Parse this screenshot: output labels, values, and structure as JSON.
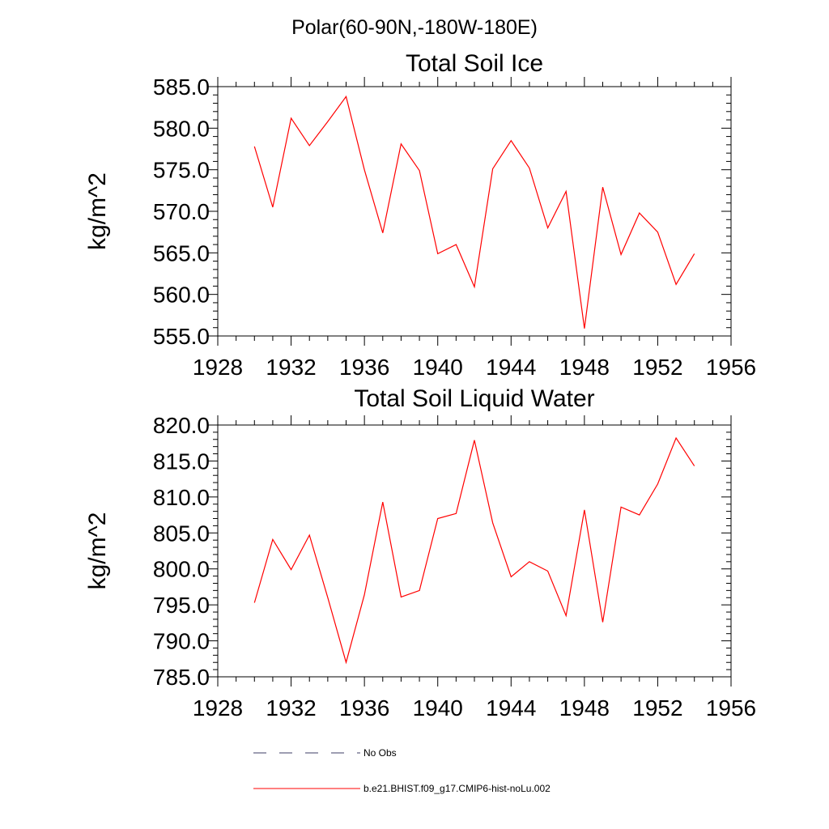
{
  "figure_title": "Polar(60-90N,-180W-180E)",
  "chart_data": [
    {
      "type": "line",
      "title": "Total Soil Ice",
      "xlabel": "",
      "ylabel": "kg/m^2",
      "xlim": [
        1928,
        1956
      ],
      "ylim": [
        555.0,
        585.0
      ],
      "xticks": [
        "1928",
        "1932",
        "1936",
        "1940",
        "1944",
        "1948",
        "1952",
        "1956"
      ],
      "yticks": [
        "555.0",
        "560.0",
        "565.0",
        "570.0",
        "575.0",
        "580.0",
        "585.0"
      ],
      "series": [
        {
          "color": "#ff0000",
          "x": [
            1930,
            1931,
            1932,
            1933,
            1934,
            1935,
            1936,
            1937,
            1938,
            1939,
            1940,
            1941,
            1942,
            1943,
            1944,
            1945,
            1946,
            1947,
            1948,
            1949,
            1950,
            1951,
            1952,
            1953,
            1954
          ],
          "values": [
            577.8,
            570.5,
            581.2,
            577.9,
            580.8,
            583.8,
            575.0,
            567.4,
            578.1,
            574.9,
            564.9,
            566.0,
            560.9,
            575.1,
            578.5,
            575.2,
            568.0,
            572.4,
            555.9,
            572.9,
            564.8,
            569.8,
            567.5,
            561.2,
            564.9
          ]
        }
      ]
    },
    {
      "type": "line",
      "title": "Total Soil Liquid Water",
      "xlabel": "",
      "ylabel": "kg/m^2",
      "xlim": [
        1928,
        1956
      ],
      "ylim": [
        785.0,
        820.0
      ],
      "xticks": [
        "1928",
        "1932",
        "1936",
        "1940",
        "1944",
        "1948",
        "1952",
        "1956"
      ],
      "yticks": [
        "785.0",
        "790.0",
        "795.0",
        "800.0",
        "805.0",
        "810.0",
        "815.0",
        "820.0"
      ],
      "series": [
        {
          "color": "#ff0000",
          "x": [
            1930,
            1931,
            1932,
            1933,
            1934,
            1935,
            1936,
            1937,
            1938,
            1939,
            1940,
            1941,
            1942,
            1943,
            1944,
            1945,
            1946,
            1947,
            1948,
            1949,
            1950,
            1951,
            1952,
            1953,
            1954
          ],
          "values": [
            795.3,
            804.1,
            799.9,
            804.7,
            796.0,
            787.0,
            796.4,
            809.3,
            796.1,
            797.0,
            807.0,
            807.7,
            817.9,
            806.4,
            798.9,
            801.0,
            799.7,
            793.5,
            808.2,
            792.6,
            808.6,
            807.5,
            811.8,
            818.2,
            814.3
          ]
        }
      ]
    }
  ],
  "legend": [
    {
      "label": "No Obs",
      "style": "dashed",
      "color": "#3d3d66"
    },
    {
      "label": "b.e21.BHIST.f09_g17.CMIP6-hist-noLu.002",
      "style": "solid",
      "color": "#ff0000"
    }
  ]
}
